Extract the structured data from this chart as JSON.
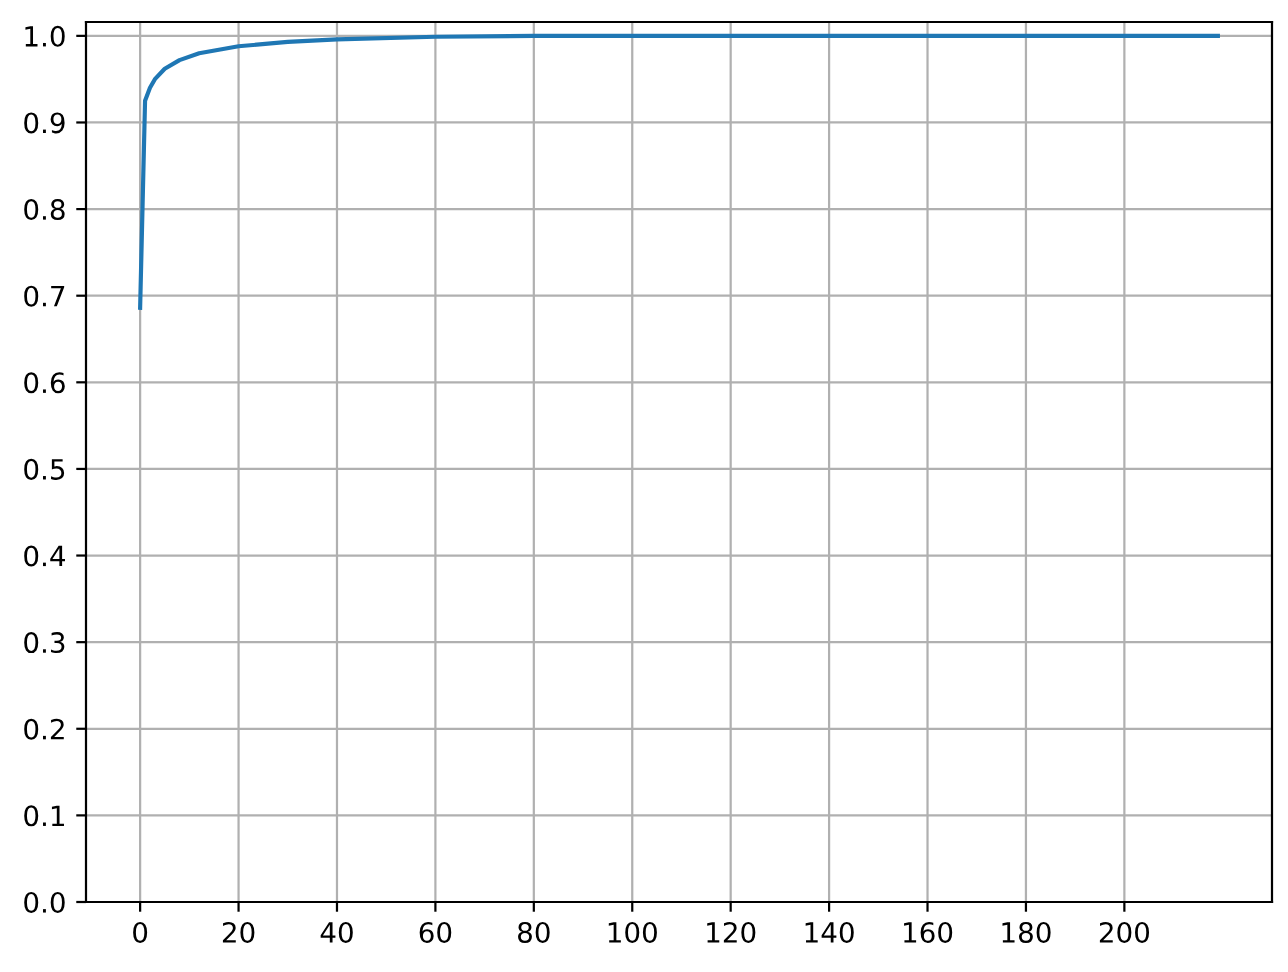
{
  "chart_data": {
    "type": "line",
    "x": [
      0,
      1,
      2,
      3,
      5,
      8,
      12,
      20,
      30,
      40,
      60,
      80,
      120,
      219
    ],
    "series": [
      {
        "color": "#1f77b4",
        "values": [
          0.686,
          0.925,
          0.94,
          0.95,
          0.962,
          0.972,
          0.98,
          0.988,
          0.993,
          0.996,
          0.999,
          1.0,
          1.0,
          1.0
        ]
      }
    ],
    "xlim": [
      -11,
      230
    ],
    "ylim": [
      0,
      1.016
    ],
    "xticks": [
      0,
      20,
      40,
      60,
      80,
      100,
      120,
      140,
      160,
      180,
      200
    ],
    "yticks": [
      {
        "value": 0,
        "label": "0.0"
      },
      {
        "value": 0.1,
        "label": "0.1"
      },
      {
        "value": 0.2,
        "label": "0.2"
      },
      {
        "value": 0.3,
        "label": "0.3"
      },
      {
        "value": 0.4,
        "label": "0.4"
      },
      {
        "value": 0.5,
        "label": "0.5"
      },
      {
        "value": 0.6,
        "label": "0.6"
      },
      {
        "value": 0.7,
        "label": "0.7"
      },
      {
        "value": 0.8,
        "label": "0.8"
      },
      {
        "value": 0.9,
        "label": "0.9"
      },
      {
        "value": 1.0,
        "label": "1.0"
      }
    ],
    "grid": true
  }
}
